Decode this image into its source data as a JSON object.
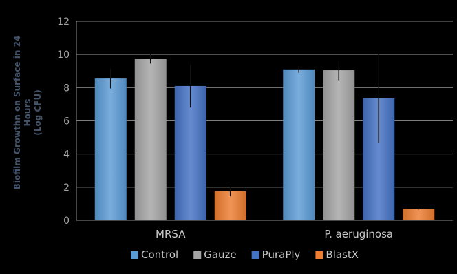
{
  "chart_data": {
    "type": "bar",
    "title": "",
    "xlabel": "",
    "ylabel": [
      "Biofilm Growthn on Surface in 24",
      "Hours",
      "(Log CFU)"
    ],
    "categories": [
      "MRSA",
      "P. aeruginosa"
    ],
    "ylim": [
      0,
      12
    ],
    "yticks": [
      0,
      2,
      4,
      6,
      8,
      10,
      12
    ],
    "grid": true,
    "legend_position": "bottom",
    "series": [
      {
        "name": "Control",
        "color": "#5b9bd5",
        "values": [
          8.55,
          9.1
        ],
        "errors": [
          0.6,
          0.2
        ]
      },
      {
        "name": "Gauze",
        "color": "#a5a5a5",
        "values": [
          9.75,
          9.05
        ],
        "errors": [
          0.3,
          0.6
        ]
      },
      {
        "name": "PuraPly",
        "color": "#4472c4",
        "values": [
          8.1,
          7.35
        ],
        "errors": [
          1.3,
          2.7
        ]
      },
      {
        "name": "BlastX",
        "color": "#ed7d31",
        "values": [
          1.75,
          0.7
        ],
        "errors": [
          0.3,
          0.05
        ]
      }
    ]
  }
}
